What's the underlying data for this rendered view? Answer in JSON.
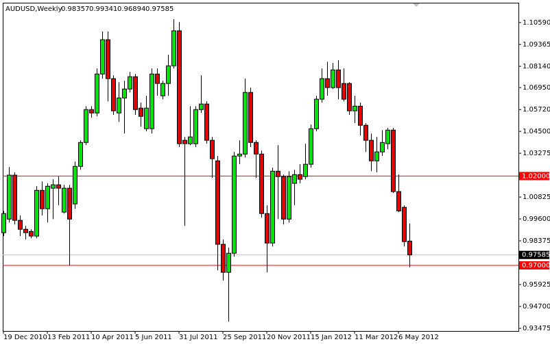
{
  "chart_data": {
    "type": "candlestick",
    "symbol": "AUDUSD,Weekly",
    "categories": [
      "19 Dec 2010",
      null,
      null,
      null,
      null,
      null,
      null,
      null,
      "13 Feb 2011",
      null,
      null,
      null,
      null,
      null,
      null,
      null,
      "10 Apr 2011",
      null,
      null,
      null,
      null,
      null,
      null,
      null,
      "5 Jun 2011",
      null,
      null,
      null,
      null,
      null,
      null,
      null,
      "31 Jul 2011",
      null,
      null,
      null,
      null,
      null,
      null,
      null,
      "25 Sep 2011",
      null,
      null,
      null,
      null,
      null,
      null,
      null,
      "20 Nov 2011",
      null,
      null,
      null,
      null,
      null,
      null,
      null,
      "15 Jan 2012",
      null,
      null,
      null,
      null,
      null,
      null,
      null,
      "11 Mar 2012",
      null,
      null,
      null,
      null,
      null,
      null,
      null,
      "6 May 2012",
      null,
      null
    ],
    "open": [
      0.9883,
      0.9959,
      1.0205,
      0.9952,
      0.9902,
      0.989,
      0.9864,
      1.012,
      1.0017,
      1.0132,
      1.0151,
      0.9998,
      1.0132,
      1.0044,
      1.0254,
      1.0388,
      1.0572,
      1.0553,
      1.0771,
      1.0963,
      1.0745,
      1.0553,
      1.0637,
      1.0687,
      1.0756,
      1.058,
      1.0465,
      1.0465,
      1.0771,
      1.0649,
      1.0718,
      1.0817,
      1.1013,
      1.04,
      1.0381,
      1.0381,
      1.0572,
      1.0603,
      1.04,
      1.0285,
      0.9818,
      0.9661,
      0.9768,
      1.0312,
      1.0323,
      1.0668,
      1.0388,
      1.0323,
      0.999,
      0.9825,
      1.0227,
      1.0197,
      0.9959,
      1.0159,
      1.0208,
      1.0197,
      1.0266,
      1.0465,
      1.063,
      1.0745,
      1.0695,
      1.0794,
      1.0718,
      1.0718,
      1.0565,
      1.0591,
      1.0484,
      1.04,
      1.0285,
      1.0335,
      1.0381,
      1.0457,
      1.0113,
      1.0025,
      0.98357
    ],
    "high": [
      1.0005,
      1.025,
      1.022,
      0.9979,
      0.9921,
      0.9902,
      1.0143,
      1.017,
      1.0159,
      1.0182,
      1.0197,
      1.0151,
      1.0151,
      1.0281,
      1.04,
      1.0591,
      1.0591,
      1.0802,
      1.1009,
      1.1009,
      1.0764,
      1.0725,
      1.0733,
      1.0783,
      1.0771,
      1.0611,
      1.0649,
      1.0802,
      1.0802,
      1.0733,
      1.0879,
      1.1078,
      1.1062,
      1.0419,
      1.0591,
      1.0591,
      1.0764,
      1.0618,
      1.0419,
      1.0312,
      0.9845,
      0.9799,
      1.0335,
      1.04,
      1.0745,
      1.0695,
      1.04,
      1.0342,
      1.0036,
      1.0247,
      1.0373,
      1.0208,
      1.0227,
      1.0235,
      1.0266,
      1.0381,
      1.0488,
      1.0649,
      1.0802,
      1.084,
      1.0833,
      1.0848,
      1.0802,
      1.0725,
      1.0649,
      1.0611,
      1.0496,
      1.0438,
      1.0419,
      1.0457,
      1.0469,
      1.0469,
      1.0208,
      1.0036,
      0.99341
    ],
    "low": [
      0.9864,
      0.994,
      0.9929,
      0.9864,
      0.9845,
      0.9852,
      0.9852,
      0.9979,
      0.994,
      0.9959,
      1.0036,
      0.999,
      0.9699,
      1.0017,
      1.0235,
      1.0373,
      1.0526,
      1.0534,
      1.0745,
      1.0618,
      1.0542,
      1.0503,
      1.0438,
      1.0668,
      1.0542,
      1.0476,
      1.045,
      1.0438,
      1.0649,
      1.063,
      1.0649,
      1.0802,
      1.0362,
      0.9921,
      1.0373,
      1.0362,
      1.0553,
      1.0381,
      1.0189,
      0.9672,
      0.9615,
      0.9385,
      0.9749,
      1.0266,
      1.0304,
      1.0362,
      1.0189,
      0.9967,
      0.9661,
      0.9806,
      0.9959,
      0.9929,
      0.994,
      1.0036,
      1.0159,
      1.0182,
      1.0247,
      1.045,
      1.0611,
      1.0649,
      1.0687,
      1.063,
      1.0618,
      1.0542,
      1.0496,
      1.0427,
      1.0335,
      1.0227,
      1.022,
      1.0312,
      1.035,
      1.0105,
      0.9998,
      0.9806,
      0.96894
    ],
    "close": [
      0.999,
      1.0205,
      0.9952,
      0.9902,
      0.9883,
      0.9864,
      1.012,
      1.0017,
      1.0143,
      1.0151,
      1.0132,
      1.0132,
      0.9959,
      1.0254,
      1.0388,
      1.0572,
      1.0553,
      1.0771,
      1.0963,
      1.0745,
      1.0565,
      1.0637,
      1.0687,
      1.0756,
      1.0572,
      1.0534,
      1.058,
      1.0771,
      1.0718,
      1.0718,
      1.0817,
      1.1013,
      1.0381,
      1.0381,
      1.0419,
      1.0572,
      1.0603,
      1.04,
      1.0297,
      0.9818,
      0.9661,
      0.9768,
      1.0312,
      1.0323,
      1.0668,
      1.0388,
      1.0323,
      0.999,
      0.9825,
      1.0227,
      1.0197,
      0.9959,
      1.0197,
      1.0208,
      1.0182,
      1.0266,
      1.0465,
      1.063,
      1.0745,
      1.0695,
      1.0794,
      1.0695,
      1.063,
      1.0565,
      1.0591,
      1.0484,
      1.04,
      1.0285,
      1.0335,
      1.0388,
      1.0457,
      1.0113,
      1.0005,
      0.9833,
      0.97585
    ],
    "up_color": "#00e600",
    "down_color": "#e60000",
    "ylim": [
      0.93326,
      1.117
    ],
    "yticks": [
      {
        "value": 1.1059,
        "label": "1.10590"
      },
      {
        "value": 1.09365,
        "label": "1.09365"
      },
      {
        "value": 1.0814,
        "label": "1.08140"
      },
      {
        "value": 1.0695,
        "label": "1.06950"
      },
      {
        "value": 1.0572,
        "label": "1.05720"
      },
      {
        "value": 1.045,
        "label": "1.04500"
      },
      {
        "value": 1.03275,
        "label": "1.03275"
      },
      {
        "value": 1.00825,
        "label": "1.00825"
      },
      {
        "value": 0.996,
        "label": "0.99600"
      },
      {
        "value": 0.98375,
        "label": "0.98375"
      },
      {
        "value": 0.95925,
        "label": "0.95925"
      },
      {
        "value": 0.947,
        "label": "0.94700"
      },
      {
        "value": 0.93475,
        "label": "0.93475"
      }
    ],
    "hlines": [
      {
        "value": 1.02,
        "label": "1.02000",
        "color": "#ff0000"
      },
      {
        "value": 0.97,
        "label": "0.97000",
        "color": "#ff0000"
      }
    ],
    "price_line_color": "#c0c0c0"
  }
}
